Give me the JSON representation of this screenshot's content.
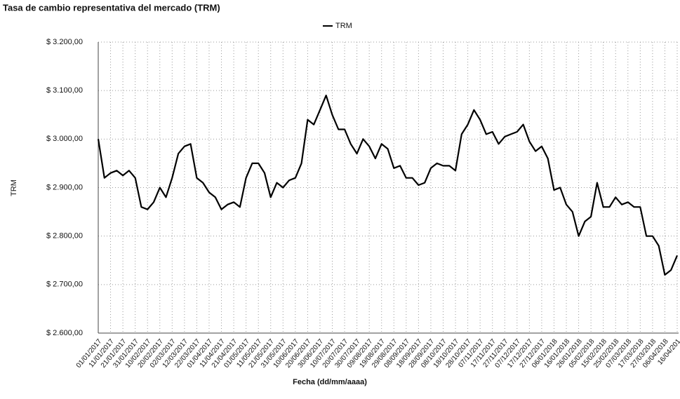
{
  "chart_data": {
    "type": "line",
    "title": "Tasa de cambio representativa del mercado (TRM)",
    "xlabel": "Fecha (dd/mm/aaaa)",
    "ylabel": "TRM",
    "categories": [
      "01/01/2017",
      null,
      "11/01/2017",
      null,
      "21/01/2017",
      null,
      "31/01/2017",
      null,
      "10/02/2017",
      null,
      "20/02/2017",
      null,
      "02/03/2017",
      null,
      "12/03/2017",
      null,
      "22/03/2017",
      null,
      "01/04/2017",
      null,
      "11/04/2017",
      null,
      "21/04/2017",
      null,
      "01/05/2017",
      null,
      "11/05/2017",
      null,
      "21/05/2017",
      null,
      "31/05/2017",
      null,
      "10/06/2017",
      null,
      "20/06/2017",
      null,
      "30/06/2017",
      null,
      "10/07/2017",
      null,
      "20/07/2017",
      null,
      "30/07/2017",
      null,
      "09/08/2017",
      null,
      "19/08/2017",
      null,
      "29/08/2017",
      null,
      "08/09/2017",
      null,
      "18/09/2017",
      null,
      "28/09/2017",
      null,
      "08/10/2017",
      null,
      "18/10/2017",
      null,
      "28/10/2017",
      null,
      "07/11/2017",
      null,
      "17/11/2017",
      null,
      "27/11/2017",
      null,
      "07/12/2017",
      null,
      "17/12/2017",
      null,
      "27/12/2017",
      null,
      "06/01/2018",
      null,
      "16/01/2018",
      null,
      "26/01/2018",
      null,
      "05/02/2018",
      null,
      "15/02/2018",
      null,
      "25/02/2018",
      null,
      "07/03/2018",
      null,
      "17/03/2018",
      null,
      "27/03/2018",
      null,
      "06/04/2018",
      null,
      "16/04/201"
    ],
    "series": [
      {
        "name": "TRM",
        "color": "#000000",
        "values": [
          3000,
          2920,
          2930,
          2935,
          2925,
          2935,
          2920,
          2860,
          2855,
          2870,
          2900,
          2880,
          2920,
          2970,
          2985,
          2990,
          2920,
          2910,
          2890,
          2880,
          2855,
          2865,
          2870,
          2860,
          2920,
          2950,
          2950,
          2930,
          2880,
          2910,
          2900,
          2915,
          2920,
          2950,
          3040,
          3030,
          3060,
          3090,
          3050,
          3020,
          3020,
          2990,
          2970,
          3000,
          2985,
          2960,
          2990,
          2980,
          2940,
          2945,
          2920,
          2920,
          2905,
          2910,
          2940,
          2950,
          2945,
          2945,
          2935,
          3010,
          3030,
          3060,
          3040,
          3010,
          3015,
          2990,
          3005,
          3010,
          3015,
          3030,
          2995,
          2975,
          2985,
          2960,
          2895,
          2900,
          2865,
          2850,
          2800,
          2830,
          2840,
          2910,
          2860,
          2860,
          2880,
          2865,
          2870,
          2860,
          2860,
          2800,
          2800,
          2780,
          2720,
          2730,
          2760
        ]
      }
    ],
    "ylim": [
      2600,
      3200
    ],
    "yticks": [
      {
        "value": 2600,
        "label": "$ 2.600,00"
      },
      {
        "value": 2700,
        "label": "$ 2.700,00"
      },
      {
        "value": 2800,
        "label": "$ 2.800,00"
      },
      {
        "value": 2900,
        "label": "$ 2.900,00"
      },
      {
        "value": 3000,
        "label": "$ 3.000,00"
      },
      {
        "value": 3100,
        "label": "$ 3.100,00"
      },
      {
        "value": 3200,
        "label": "$ 3.200,00"
      }
    ],
    "grid": true,
    "legend": "top"
  }
}
